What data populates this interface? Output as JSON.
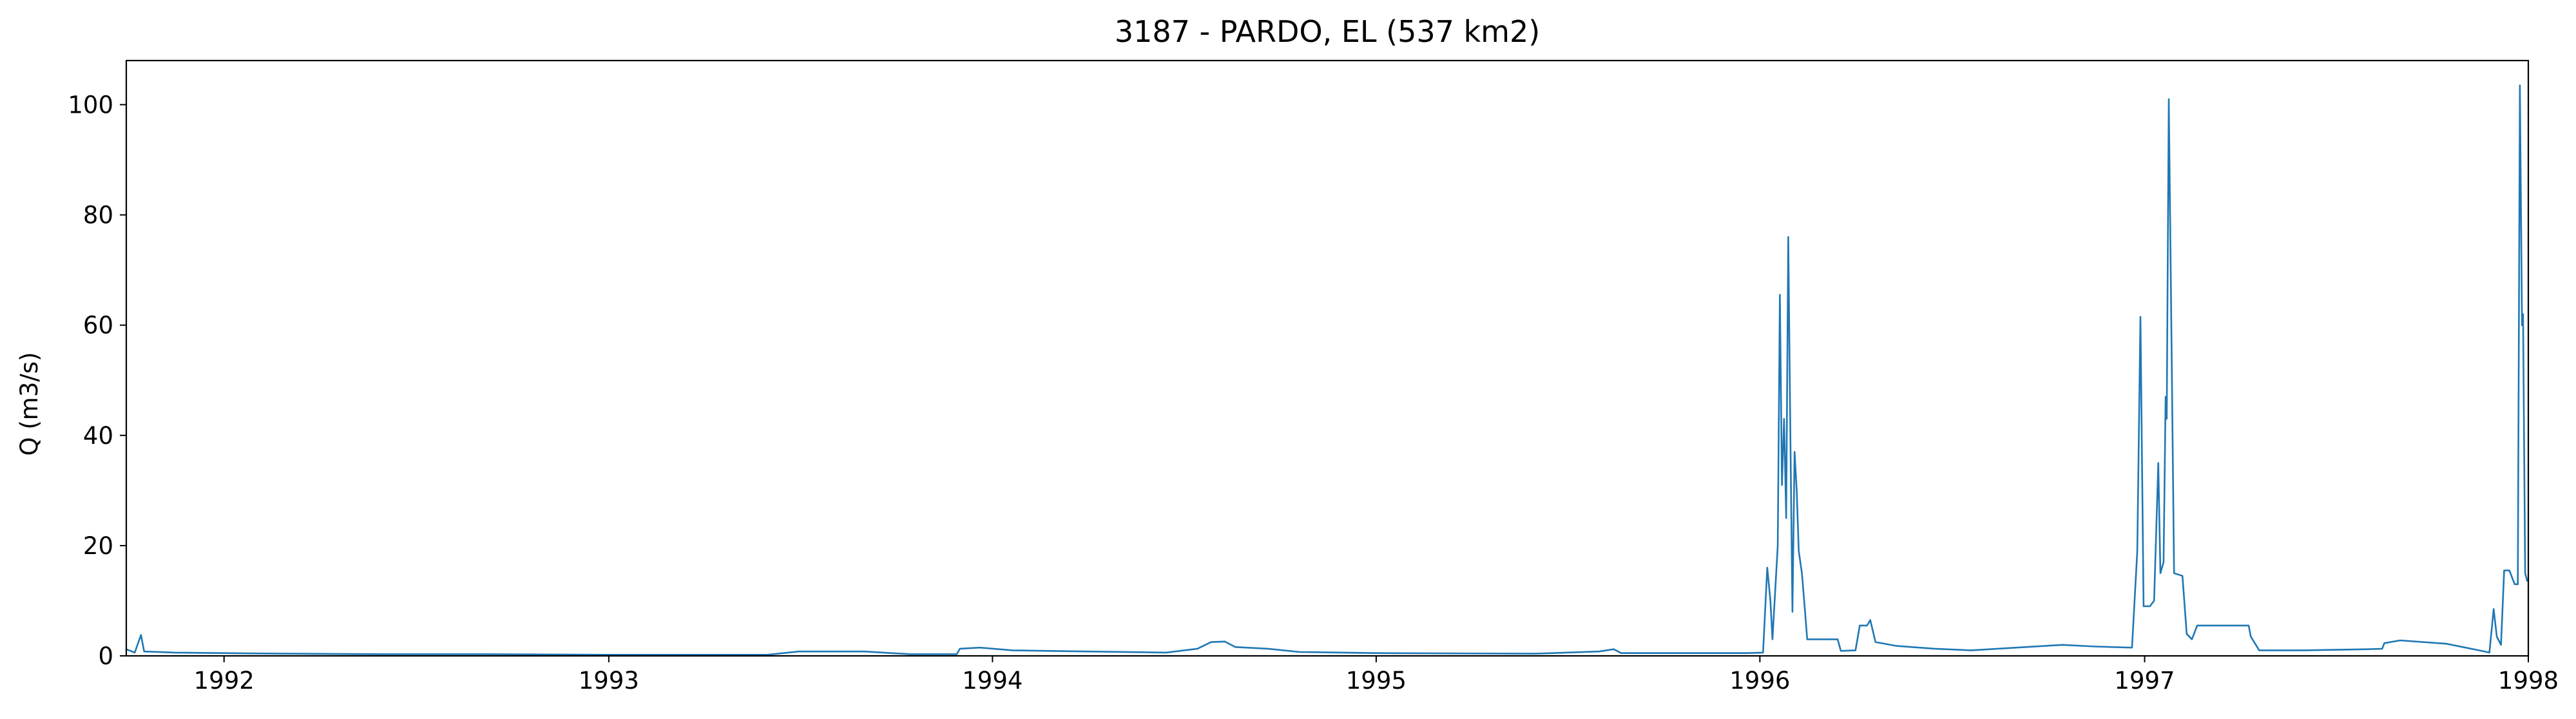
{
  "chart_data": {
    "type": "line",
    "title": "3187 - PARDO, EL (537 km2)",
    "xlabel": "",
    "ylabel": "Q (m3/s)",
    "xlim": [
      "1991-09-30",
      "1998-01-01"
    ],
    "ylim": [
      0,
      108
    ],
    "grid": false,
    "color": "#1f77b4",
    "x_ticks": [
      "1992",
      "1993",
      "1994",
      "1995",
      "1996",
      "1997",
      "1998"
    ],
    "y_ticks": [
      "0",
      "20",
      "40",
      "60",
      "80",
      "100"
    ],
    "series": [
      {
        "points": [
          [
            "1991-09-30",
            1.2
          ],
          [
            "1991-10-08",
            0.6
          ],
          [
            "1991-10-14",
            3.8
          ],
          [
            "1991-10-17",
            0.8
          ],
          [
            "1991-11-15",
            0.6
          ],
          [
            "1991-12-31",
            0.5
          ],
          [
            "1992-03-01",
            0.4
          ],
          [
            "1992-06-01",
            0.3
          ],
          [
            "1992-09-01",
            0.3
          ],
          [
            "1992-12-31",
            0.2
          ],
          [
            "1993-06-01",
            0.2
          ],
          [
            "1993-07-01",
            0.8
          ],
          [
            "1993-09-01",
            0.8
          ],
          [
            "1993-10-15",
            0.3
          ],
          [
            "1993-11-28",
            0.3
          ],
          [
            "1993-12-01",
            1.3
          ],
          [
            "1993-12-20",
            1.5
          ],
          [
            "1994-01-20",
            1.0
          ],
          [
            "1994-04-01",
            0.8
          ],
          [
            "1994-06-15",
            0.6
          ],
          [
            "1994-07-15",
            1.3
          ],
          [
            "1994-07-28",
            2.5
          ],
          [
            "1994-08-10",
            2.6
          ],
          [
            "1994-08-20",
            1.6
          ],
          [
            "1994-09-20",
            1.3
          ],
          [
            "1994-10-20",
            0.7
          ],
          [
            "1995-01-01",
            0.5
          ],
          [
            "1995-06-01",
            0.4
          ],
          [
            "1995-08-01",
            0.8
          ],
          [
            "1995-08-15",
            1.2
          ],
          [
            "1995-08-22",
            0.5
          ],
          [
            "1995-12-20",
            0.5
          ],
          [
            "1996-01-04",
            0.6
          ],
          [
            "1996-01-08",
            16.0
          ],
          [
            "1996-01-11",
            10.0
          ],
          [
            "1996-01-13",
            3.0
          ],
          [
            "1996-01-18",
            20.0
          ],
          [
            "1996-01-20",
            65.5
          ],
          [
            "1996-01-22",
            31.0
          ],
          [
            "1996-01-24",
            43.0
          ],
          [
            "1996-01-26",
            25.0
          ],
          [
            "1996-01-28",
            76.0
          ],
          [
            "1996-01-30",
            40.0
          ],
          [
            "1996-02-01",
            8.0
          ],
          [
            "1996-02-03",
            37.0
          ],
          [
            "1996-02-05",
            30.0
          ],
          [
            "1996-02-07",
            19.0
          ],
          [
            "1996-02-10",
            15.0
          ],
          [
            "1996-02-13",
            8.0
          ],
          [
            "1996-02-15",
            3.0
          ],
          [
            "1996-03-15",
            3.0
          ],
          [
            "1996-03-18",
            0.9
          ],
          [
            "1996-04-01",
            1.0
          ],
          [
            "1996-04-05",
            5.5
          ],
          [
            "1996-04-12",
            5.5
          ],
          [
            "1996-04-15",
            6.5
          ],
          [
            "1996-04-20",
            2.5
          ],
          [
            "1996-05-10",
            1.8
          ],
          [
            "1996-06-15",
            1.3
          ],
          [
            "1996-07-20",
            1.0
          ],
          [
            "1996-09-01",
            1.5
          ],
          [
            "1996-10-15",
            2.0
          ],
          [
            "1996-11-15",
            1.7
          ],
          [
            "1996-12-20",
            1.5
          ],
          [
            "1996-12-25",
            19.0
          ],
          [
            "1996-12-28",
            61.5
          ],
          [
            "1996-12-31",
            9.0
          ],
          [
            "1997-01-06",
            9.0
          ],
          [
            "1997-01-10",
            10.0
          ],
          [
            "1997-01-14",
            35.0
          ],
          [
            "1997-01-16",
            15.0
          ],
          [
            "1997-01-19",
            17.0
          ],
          [
            "1997-01-21",
            47.0
          ],
          [
            "1997-01-22",
            43.0
          ],
          [
            "1997-01-24",
            101.0
          ],
          [
            "1997-01-27",
            50.0
          ],
          [
            "1997-01-29",
            15.0
          ],
          [
            "1997-02-06",
            14.5
          ],
          [
            "1997-02-10",
            4.0
          ],
          [
            "1997-02-15",
            3.0
          ],
          [
            "1997-02-20",
            5.5
          ],
          [
            "1997-04-10",
            5.5
          ],
          [
            "1997-04-12",
            3.5
          ],
          [
            "1997-04-20",
            1.0
          ],
          [
            "1997-06-01",
            1.0
          ],
          [
            "1997-08-01",
            1.2
          ],
          [
            "1997-08-15",
            1.3
          ],
          [
            "1997-08-17",
            2.3
          ],
          [
            "1997-09-01",
            2.8
          ],
          [
            "1997-10-15",
            2.2
          ],
          [
            "1997-11-15",
            1.0
          ],
          [
            "1997-11-25",
            0.6
          ],
          [
            "1997-11-29",
            8.5
          ],
          [
            "1997-12-02",
            3.5
          ],
          [
            "1997-12-06",
            2.0
          ],
          [
            "1997-12-09",
            15.5
          ],
          [
            "1997-12-14",
            15.5
          ],
          [
            "1997-12-19",
            13.0
          ],
          [
            "1997-12-22",
            13.0
          ],
          [
            "1997-12-24",
            103.5
          ],
          [
            "1997-12-26",
            60.0
          ],
          [
            "1997-12-27",
            62.0
          ],
          [
            "1997-12-29",
            15.0
          ],
          [
            "1997-12-31",
            13.5
          ]
        ]
      }
    ]
  }
}
